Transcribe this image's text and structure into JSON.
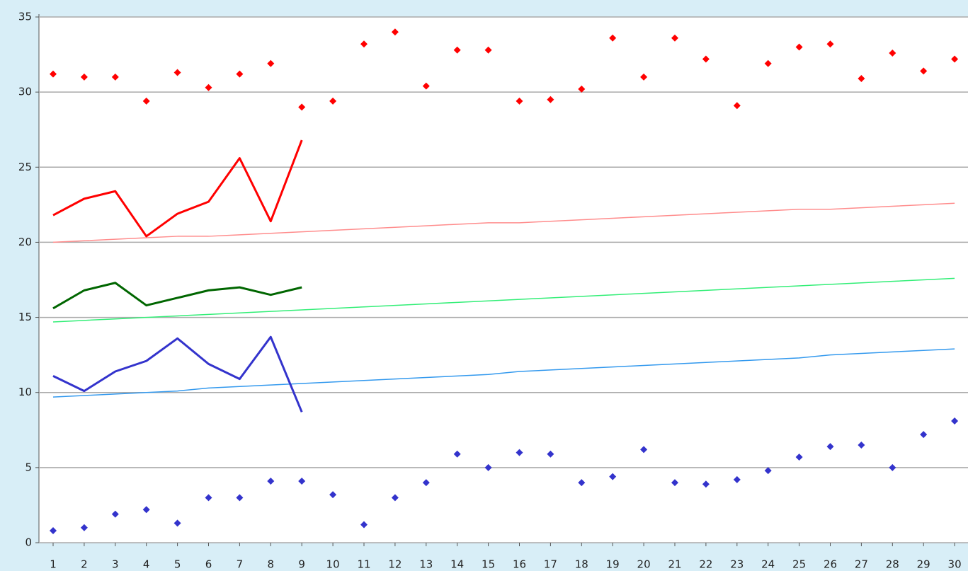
{
  "chart_data": {
    "type": "line",
    "categories": [
      "1",
      "2",
      "3",
      "4",
      "5",
      "6",
      "7",
      "8",
      "9",
      "10",
      "11",
      "12",
      "13",
      "14",
      "15",
      "16",
      "17",
      "18",
      "19",
      "20",
      "21",
      "22",
      "23",
      "24",
      "25",
      "26",
      "27",
      "28",
      "29",
      "30"
    ],
    "ylim": [
      0,
      35
    ],
    "yticks": [
      0,
      5,
      10,
      15,
      20,
      25,
      30,
      35
    ],
    "grid": true,
    "series": [
      {
        "type": "scatter",
        "color": "#ff0000",
        "values": [
          31.2,
          31.0,
          31.0,
          29.4,
          31.3,
          30.3,
          31.2,
          31.9,
          29.0,
          29.4,
          33.2,
          34.0,
          30.4,
          32.8,
          32.8,
          29.4,
          29.5,
          30.2,
          33.6,
          31.0,
          33.6,
          32.2,
          29.1,
          31.9,
          33.0,
          33.2,
          30.9,
          32.6,
          31.4,
          32.2
        ]
      },
      {
        "type": "scatter",
        "color": "#3333cc",
        "values": [
          0.8,
          1.0,
          1.9,
          2.2,
          1.3,
          3.0,
          3.0,
          4.1,
          4.1,
          3.2,
          1.2,
          3.0,
          4.0,
          5.9,
          5.0,
          6.0,
          5.9,
          4.0,
          4.4,
          6.2,
          4.0,
          3.9,
          4.2,
          4.8,
          5.7,
          6.4,
          6.5,
          5.0,
          7.2,
          8.1
        ]
      },
      {
        "type": "line",
        "color": "#ff8c8c",
        "width": 1.5,
        "values": [
          20.0,
          20.1,
          20.2,
          20.3,
          20.4,
          20.4,
          20.5,
          20.6,
          20.7,
          20.8,
          20.9,
          21.0,
          21.1,
          21.2,
          21.3,
          21.3,
          21.4,
          21.5,
          21.6,
          21.7,
          21.8,
          21.9,
          22.0,
          22.1,
          22.2,
          22.2,
          22.3,
          22.4,
          22.5,
          22.6
        ]
      },
      {
        "type": "line",
        "color": "#33ee77",
        "width": 1.5,
        "values": [
          14.7,
          14.8,
          14.9,
          15.0,
          15.1,
          15.2,
          15.3,
          15.4,
          15.5,
          15.6,
          15.7,
          15.8,
          15.9,
          16.0,
          16.1,
          16.2,
          16.3,
          16.4,
          16.5,
          16.6,
          16.7,
          16.8,
          16.9,
          17.0,
          17.1,
          17.2,
          17.3,
          17.4,
          17.5,
          17.6
        ]
      },
      {
        "type": "line",
        "color": "#3399ee",
        "width": 1.5,
        "values": [
          9.7,
          9.8,
          9.9,
          10.0,
          10.1,
          10.3,
          10.4,
          10.5,
          10.6,
          10.7,
          10.8,
          10.9,
          11.0,
          11.1,
          11.2,
          11.4,
          11.5,
          11.6,
          11.7,
          11.8,
          11.9,
          12.0,
          12.1,
          12.2,
          12.3,
          12.5,
          12.6,
          12.7,
          12.8,
          12.9
        ]
      },
      {
        "type": "line",
        "color": "#ff0000",
        "width": 3,
        "values": [
          21.8,
          22.9,
          23.4,
          20.4,
          21.9,
          22.7,
          25.6,
          21.4,
          26.8,
          null,
          null,
          null,
          null,
          null,
          null,
          null,
          null,
          null,
          null,
          null,
          null,
          null,
          null,
          null,
          null,
          null,
          null,
          null,
          null,
          null
        ]
      },
      {
        "type": "line",
        "color": "#006600",
        "width": 3,
        "values": [
          15.6,
          16.8,
          17.3,
          15.8,
          16.3,
          16.8,
          17.0,
          16.5,
          17.0,
          null,
          null,
          null,
          null,
          null,
          null,
          null,
          null,
          null,
          null,
          null,
          null,
          null,
          null,
          null,
          null,
          null,
          null,
          null,
          null,
          null
        ]
      },
      {
        "type": "line",
        "color": "#3333cc",
        "width": 3,
        "values": [
          11.1,
          10.1,
          11.4,
          12.1,
          13.6,
          11.9,
          10.9,
          13.7,
          8.7,
          null,
          null,
          null,
          null,
          null,
          null,
          null,
          null,
          null,
          null,
          null,
          null,
          null,
          null,
          null,
          null,
          null,
          null,
          null,
          null,
          null
        ]
      }
    ]
  }
}
